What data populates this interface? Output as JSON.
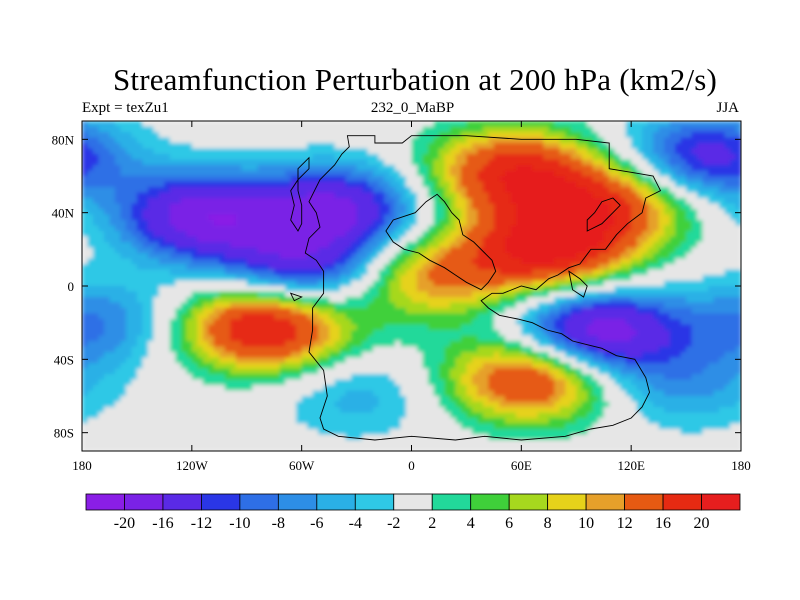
{
  "title": "Streamfunction Perturbation at 200 hPa (km2/s)",
  "subtitle_left": "Expt = texZu1",
  "subtitle_center": "232_0_MaBP",
  "subtitle_right": "JJA",
  "lat_ticks": [
    "80N",
    "40N",
    "0",
    "40S",
    "80S"
  ],
  "lon_ticks": [
    "180",
    "120W",
    "60W",
    "0",
    "60E",
    "120E",
    "180"
  ],
  "colorbar": {
    "labels": [
      "-20",
      "-16",
      "-12",
      "-10",
      "-8",
      "-6",
      "-4",
      "-2",
      "2",
      "4",
      "6",
      "8",
      "10",
      "12",
      "16",
      "20"
    ],
    "colors": [
      "#8a1ee6",
      "#7a22e6",
      "#5a2ae6",
      "#2a36e6",
      "#2e6fe6",
      "#2d8ee6",
      "#2ab0e6",
      "#2fc8e6",
      "#e6e6e6",
      "#22d99a",
      "#3fd03a",
      "#a6d81e",
      "#e6d21a",
      "#e6a02a",
      "#e65a12",
      "#e62a12",
      "#e61e1e"
    ]
  },
  "chart_data": {
    "type": "heatmap",
    "title": "Streamfunction Perturbation at 200 hPa (km2/s)",
    "x_range": [
      -180,
      180
    ],
    "y_range": [
      -90,
      90
    ],
    "x_ticks": [
      "180",
      "120W",
      "60W",
      "0",
      "60E",
      "120E",
      "180"
    ],
    "y_ticks": [
      "80N",
      "40N",
      "0",
      "40S",
      "80S"
    ],
    "contour_levels": [
      -20,
      -16,
      -12,
      -10,
      -8,
      -6,
      -4,
      -2,
      2,
      4,
      6,
      8,
      10,
      12,
      16,
      20
    ],
    "features": [
      {
        "lon": -115,
        "lat": 38,
        "value": -18
      },
      {
        "lon": -40,
        "lat": 42,
        "value": -16
      },
      {
        "lon": -60,
        "lat": 8,
        "value": -14
      },
      {
        "lon": 160,
        "lat": 70,
        "value": -14
      },
      {
        "lon": 100,
        "lat": -25,
        "value": -20
      },
      {
        "lon": -170,
        "lat": -20,
        "value": -8
      },
      {
        "lon": -80,
        "lat": -22,
        "value": 22
      },
      {
        "lon": 75,
        "lat": 20,
        "value": 20
      },
      {
        "lon": 55,
        "lat": 62,
        "value": 18
      },
      {
        "lon": 65,
        "lat": -50,
        "value": 18
      },
      {
        "lon": 10,
        "lat": 5,
        "value": 12
      },
      {
        "lon": 110,
        "lat": 45,
        "value": 14
      },
      {
        "lon": -30,
        "lat": -60,
        "value": -5
      },
      {
        "lon": 150,
        "lat": -55,
        "value": -6
      }
    ]
  }
}
